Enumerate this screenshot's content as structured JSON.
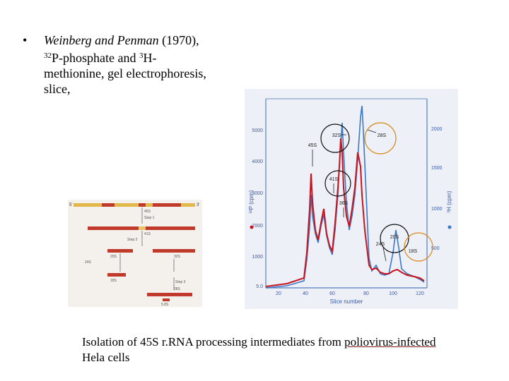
{
  "bullet": {
    "marker": "•",
    "authors": "Weinberg and Penman",
    "year": " (1970),",
    "iso1": "32",
    "line2a": "P-phosphate and ",
    "iso2": "3",
    "line2b": "H-",
    "line3": "methionine, gel electrophoresis,",
    "line4": "slice,"
  },
  "caption": {
    "prefix": "Isolation of 45S r.RNA processing intermediates from ",
    "link": "poliovirus-infected",
    "suffix": "Hela cells"
  },
  "schematic": {
    "top_left_label": "5'",
    "top_right_label": "3'",
    "labels": [
      "45S",
      "41S",
      "32S",
      "24S",
      "20S",
      "18S",
      "28S",
      "Step 1",
      "Step 2",
      "Step 3",
      "5.8S"
    ]
  },
  "plot": {
    "y_left_label": "³²P (cpm)",
    "y_right_label": "³H (cpm)",
    "x_label": "Slice number",
    "x_ticks": [
      "20",
      "40",
      "60",
      "80",
      "100",
      "120"
    ],
    "y_left_ticks": [
      "5.0",
      "1000",
      "2000",
      "3000",
      "4000",
      "5000"
    ],
    "y_right_ticks": [
      "500",
      "1000",
      "1500",
      "2000"
    ],
    "peak_labels": [
      "45S",
      "41S",
      "36S",
      "32S",
      "28S",
      "24S",
      "20S",
      "18S"
    ],
    "colors": {
      "red_series": "#c8141e",
      "blue_series": "#3a78c8",
      "circle_black": "#111111",
      "circle_orange": "#d98a1c",
      "plot_bg": "#eef0f8"
    }
  }
}
